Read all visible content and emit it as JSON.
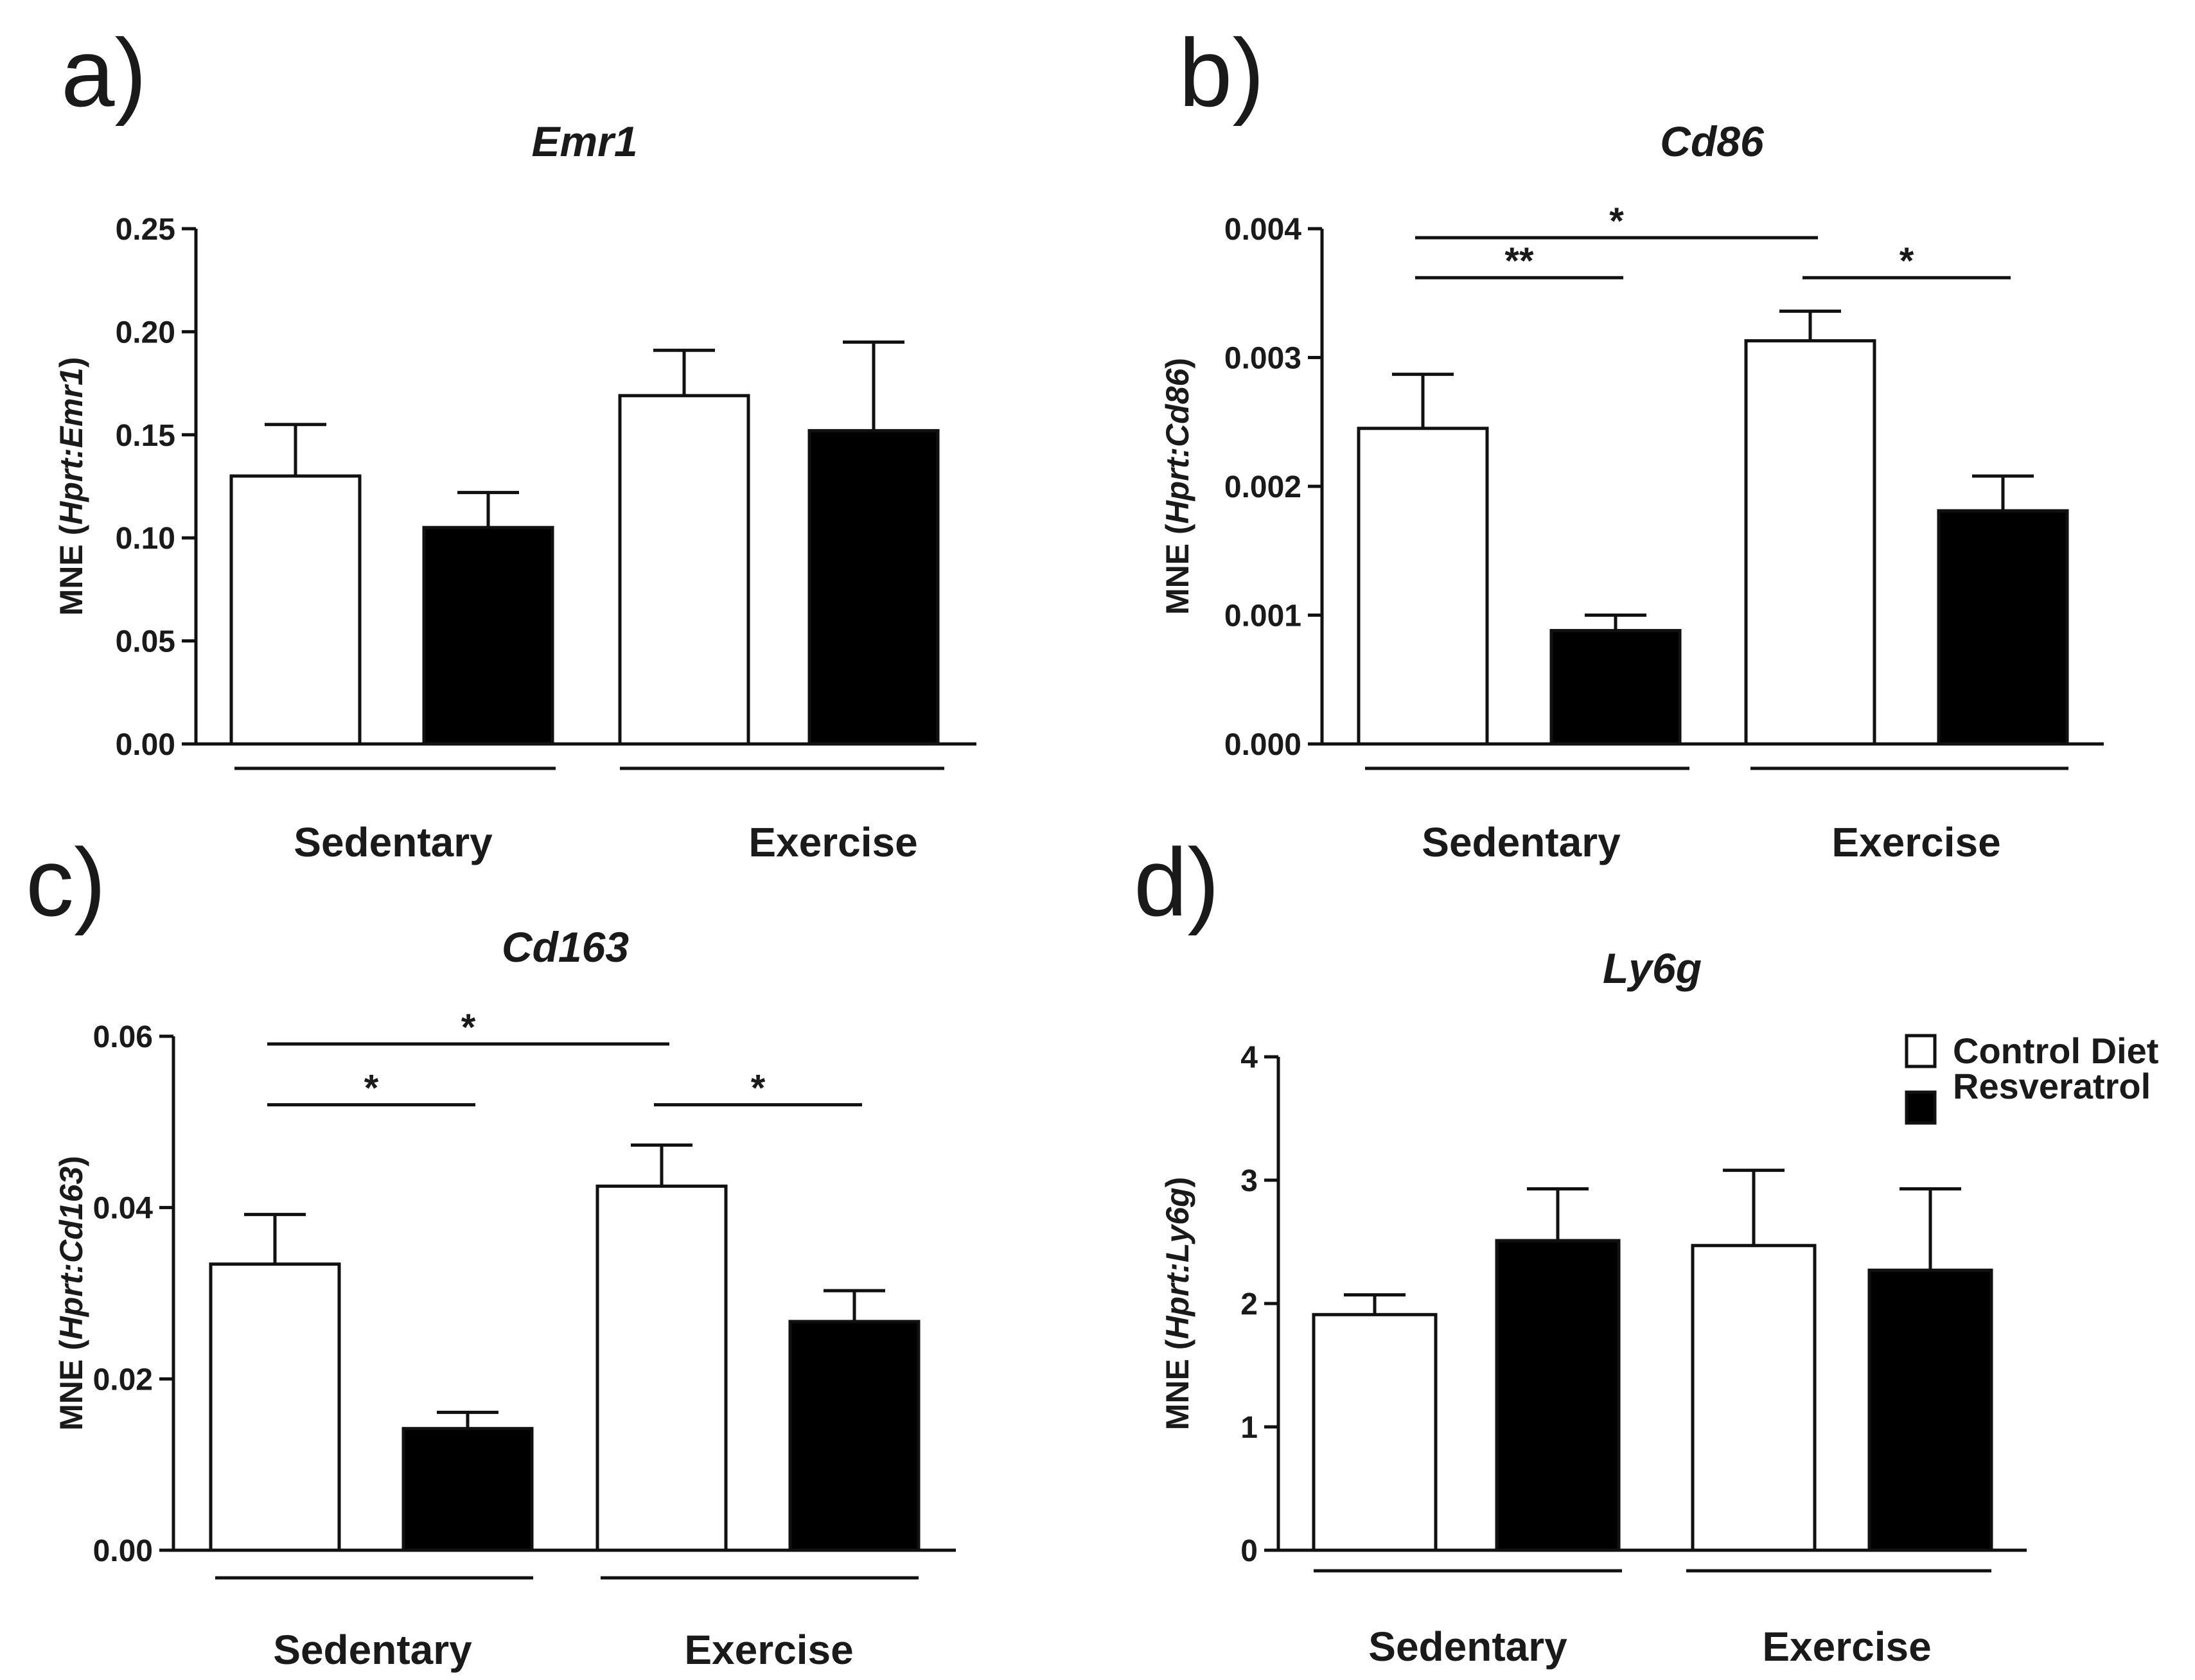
{
  "legend": {
    "items": [
      {
        "label": "Control Diet",
        "color": "#ffffff"
      },
      {
        "label": "Resveratrol",
        "color": "#000000"
      }
    ]
  },
  "chart_data": [
    {
      "type": "bar",
      "panel": "a)",
      "title": "Emr1",
      "ylabel_prefix": "MNE (",
      "ylabel_italic": "Hprt:Emr1",
      "ylabel_suffix": ")",
      "ylim": [
        0,
        0.25
      ],
      "yticks": [
        "0.00",
        "0.05",
        "0.10",
        "0.15",
        "0.20",
        "0.25"
      ],
      "categories": [
        "Sedentary",
        "Exercise"
      ],
      "series": [
        {
          "name": "Control Diet",
          "color": "#ffffff",
          "values": [
            0.13,
            0.169
          ],
          "errors": [
            0.025,
            0.022
          ]
        },
        {
          "name": "Resveratrol",
          "color": "#000000",
          "values": [
            0.105,
            0.152
          ],
          "errors": [
            0.017,
            0.043
          ]
        }
      ],
      "annotations": []
    },
    {
      "type": "bar",
      "panel": "b)",
      "title": "Cd86",
      "ylabel_prefix": "MNE (",
      "ylabel_italic": "Hprt:Cd86",
      "ylabel_suffix": ")",
      "ylim": [
        0,
        0.004
      ],
      "yticks": [
        "0.000",
        "0.001",
        "0.002",
        "0.003",
        "0.004"
      ],
      "categories": [
        "Sedentary",
        "Exercise"
      ],
      "series": [
        {
          "name": "Control Diet",
          "color": "#ffffff",
          "values": [
            0.00245,
            0.00313
          ],
          "errors": [
            0.00042,
            0.00023
          ]
        },
        {
          "name": "Resveratrol",
          "color": "#000000",
          "values": [
            0.00088,
            0.00181
          ],
          "errors": [
            0.00012,
            0.00027
          ]
        }
      ],
      "annotations": [
        {
          "text": "*",
          "from": [
            0,
            0
          ],
          "to": [
            1,
            0
          ],
          "level": 0.00393
        },
        {
          "text": "**",
          "from": [
            0,
            0
          ],
          "to": [
            0,
            1
          ],
          "level": 0.00362
        },
        {
          "text": "*",
          "from": [
            1,
            0
          ],
          "to": [
            1,
            1
          ],
          "level": 0.00362
        }
      ]
    },
    {
      "type": "bar",
      "panel": "c)",
      "title": "Cd163",
      "ylabel_prefix": "MNE (",
      "ylabel_italic": "Hprt:Cd163",
      "ylabel_suffix": ")",
      "ylim": [
        0,
        0.06
      ],
      "yticks": [
        "0.00",
        "0.02",
        "0.04",
        "0.06"
      ],
      "categories": [
        "Sedentary",
        "Exercise"
      ],
      "series": [
        {
          "name": "Control Diet",
          "color": "#ffffff",
          "values": [
            0.0334,
            0.0425
          ],
          "errors": [
            0.0058,
            0.0048
          ]
        },
        {
          "name": "Resveratrol",
          "color": "#000000",
          "values": [
            0.0142,
            0.0267
          ],
          "errors": [
            0.0019,
            0.0036
          ]
        }
      ],
      "annotations": [
        {
          "text": "*",
          "from": [
            0,
            0
          ],
          "to": [
            1,
            0
          ],
          "level": 0.0591
        },
        {
          "text": "*",
          "from": [
            0,
            0
          ],
          "to": [
            0,
            1
          ],
          "level": 0.052
        },
        {
          "text": "*",
          "from": [
            1,
            0
          ],
          "to": [
            1,
            1
          ],
          "level": 0.052
        }
      ]
    },
    {
      "type": "bar",
      "panel": "d)",
      "title": "Ly6g",
      "ylabel_prefix": "MNE (",
      "ylabel_italic": "Hprt:Ly6g",
      "ylabel_suffix": ")",
      "ylim": [
        0,
        4
      ],
      "yticks": [
        "0",
        "1",
        "2",
        "3",
        "4"
      ],
      "categories": [
        "Sedentary",
        "Exercise"
      ],
      "series": [
        {
          "name": "Control Diet",
          "color": "#ffffff",
          "values": [
            1.91,
            2.47
          ],
          "errors": [
            0.16,
            0.61
          ]
        },
        {
          "name": "Resveratrol",
          "color": "#000000",
          "values": [
            2.51,
            2.27
          ],
          "errors": [
            0.42,
            0.66
          ]
        }
      ],
      "annotations": []
    }
  ]
}
